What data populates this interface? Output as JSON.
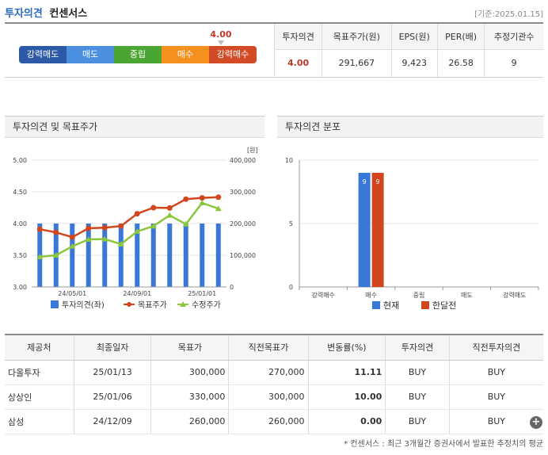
{
  "header": {
    "title": "투자의견",
    "subtitle": "컨센서스",
    "date": "[기준:2025.01.15]"
  },
  "scale": {
    "items": [
      {
        "label": "강력매도",
        "color": "#2d5aa6"
      },
      {
        "label": "매도",
        "color": "#4a8fe0"
      },
      {
        "label": "중립",
        "color": "#4aa532"
      },
      {
        "label": "매수",
        "color": "#f4901e"
      },
      {
        "label": "강력매수",
        "color": "#d24b26"
      }
    ],
    "marker_value": "4.00",
    "marker_position": 0.75
  },
  "consensus": {
    "headers": [
      "투자의견",
      "목표주가(원)",
      "EPS(원)",
      "PER(배)",
      "추정기관수"
    ],
    "values": [
      "4.00",
      "291,667",
      "9,423",
      "26.58",
      "9"
    ]
  },
  "panels": {
    "left_title": "투자의견 및 목표주가",
    "right_title": "투자의견 분포"
  },
  "chart_data": [
    {
      "type": "bar+line",
      "title": "투자의견 및 목표주가",
      "y_left": {
        "ticks": [
          "5.00",
          "4.50",
          "4.00",
          "3.50",
          "3.00"
        ],
        "range": [
          3.0,
          5.0
        ]
      },
      "y_right": {
        "unit": "[원]",
        "ticks": [
          "400,000",
          "300,000",
          "200,000",
          "100,000",
          "0"
        ],
        "range": [
          0,
          400000
        ]
      },
      "x_ticks": [
        "24/05/01",
        "24/09/01",
        "25/01/01"
      ],
      "series": [
        {
          "name": "투자의견(좌)",
          "type": "bar",
          "color": "#3a78d8",
          "values": [
            4,
            4,
            4,
            4,
            4,
            4,
            4,
            4,
            4,
            4,
            4,
            4
          ]
        },
        {
          "name": "목표주가",
          "type": "line",
          "color": "#d2461e",
          "values": [
            182000,
            172000,
            157000,
            185000,
            187000,
            192000,
            231000,
            250000,
            249000,
            277000,
            281000,
            283000
          ]
        },
        {
          "name": "수정주가",
          "type": "line",
          "color": "#8cc63f",
          "values": [
            95000,
            100000,
            128000,
            150000,
            151000,
            135000,
            175000,
            192000,
            226000,
            198000,
            265000,
            247000
          ]
        }
      ]
    },
    {
      "type": "bar",
      "title": "투자의견 분포",
      "categories": [
        "강력매수",
        "매수",
        "중립",
        "매도",
        "강력매도"
      ],
      "y_ticks": [
        "10",
        "5",
        "0"
      ],
      "ylim": [
        0,
        10
      ],
      "series": [
        {
          "name": "현재",
          "color": "#3a78d8",
          "values": [
            0,
            9,
            0,
            0,
            0
          ]
        },
        {
          "name": "한달전",
          "color": "#d2461e",
          "values": [
            0,
            9,
            0,
            0,
            0
          ]
        }
      ]
    }
  ],
  "brokers": {
    "headers": [
      "제공처",
      "최종일자",
      "목표가",
      "직전목표가",
      "변동률(%)",
      "투자의견",
      "직전투자의견"
    ],
    "rows": [
      [
        "다올투자",
        "25/01/13",
        "300,000",
        "270,000",
        "11.11",
        "BUY",
        "BUY"
      ],
      [
        "상상인",
        "25/01/06",
        "330,000",
        "300,000",
        "10.00",
        "BUY",
        "BUY"
      ],
      [
        "삼성",
        "24/12/09",
        "260,000",
        "260,000",
        "0.00",
        "BUY",
        "BUY"
      ]
    ]
  },
  "footer": "* 컨센서스 : 최근 3개월간 증권사에서 발표한 추정치의 평균"
}
